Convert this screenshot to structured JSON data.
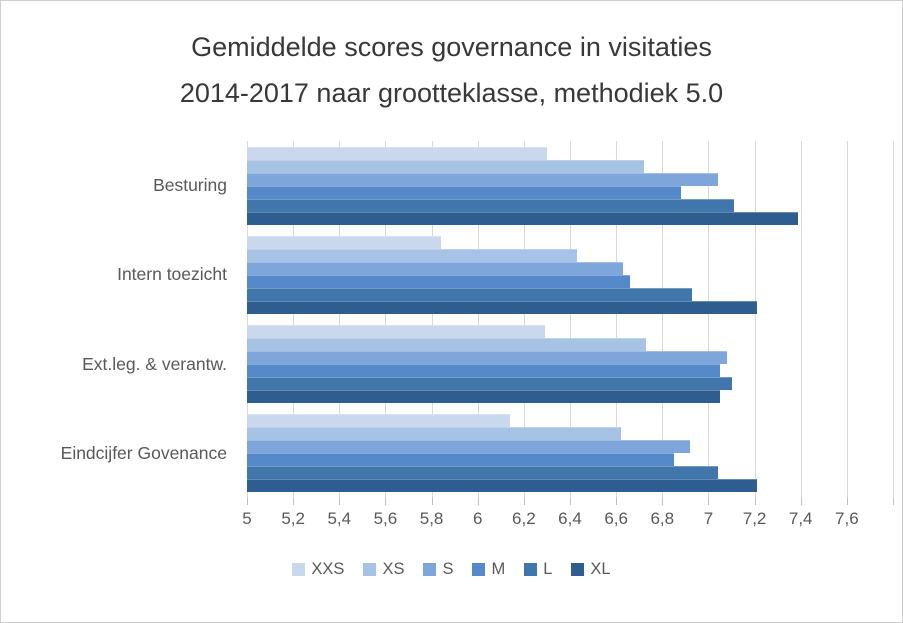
{
  "title": {
    "line1": "Gemiddelde scores governance in visitaties",
    "line2": "2014-2017 naar grootteklasse, methodiek 5.0"
  },
  "colors": {
    "gridline": "#d9d9d9",
    "tick_mark": "#bfbfbf",
    "axis_text": "#595959",
    "title_text": "#383838"
  },
  "chart_data": {
    "type": "bar",
    "orientation": "horizontal",
    "title": "Gemiddelde scores governance in visitaties 2014-2017 naar grootteklasse, methodiek 5.0",
    "categories": [
      "Besturing",
      "Intern toezicht",
      "Ext.leg. & verantw.",
      "Eindcijfer Govenance"
    ],
    "series": [
      {
        "name": "XXS",
        "color": "#c9d8ec",
        "values": [
          6.3,
          5.84,
          6.29,
          6.14
        ]
      },
      {
        "name": "XS",
        "color": "#a6c2e4",
        "values": [
          6.72,
          6.43,
          6.73,
          6.62
        ]
      },
      {
        "name": "S",
        "color": "#7fa6da",
        "values": [
          7.04,
          6.63,
          7.08,
          6.92
        ]
      },
      {
        "name": "M",
        "color": "#5589c9",
        "values": [
          6.88,
          6.66,
          7.05,
          6.85
        ]
      },
      {
        "name": "L",
        "color": "#4176ac",
        "values": [
          7.11,
          6.93,
          7.1,
          7.04
        ]
      },
      {
        "name": "XL",
        "color": "#2e5e90",
        "values": [
          7.39,
          7.21,
          7.05,
          7.21
        ]
      }
    ],
    "xlim": [
      5,
      7.8
    ],
    "ticks": [
      {
        "v": 5.0,
        "label": "5"
      },
      {
        "v": 5.2,
        "label": "5,2"
      },
      {
        "v": 5.4,
        "label": "5,4"
      },
      {
        "v": 5.6,
        "label": "5,6"
      },
      {
        "v": 5.8,
        "label": "5,8"
      },
      {
        "v": 6.0,
        "label": "6"
      },
      {
        "v": 6.2,
        "label": "6,2"
      },
      {
        "v": 6.4,
        "label": "6,4"
      },
      {
        "v": 6.6,
        "label": "6,6"
      },
      {
        "v": 6.8,
        "label": "6,8"
      },
      {
        "v": 7.0,
        "label": "7"
      },
      {
        "v": 7.2,
        "label": "7,2"
      },
      {
        "v": 7.4,
        "label": "7,4"
      },
      {
        "v": 7.6,
        "label": "7,6"
      },
      {
        "v": 7.8,
        "label": ""
      }
    ],
    "grid": true,
    "legend_position": "bottom"
  }
}
